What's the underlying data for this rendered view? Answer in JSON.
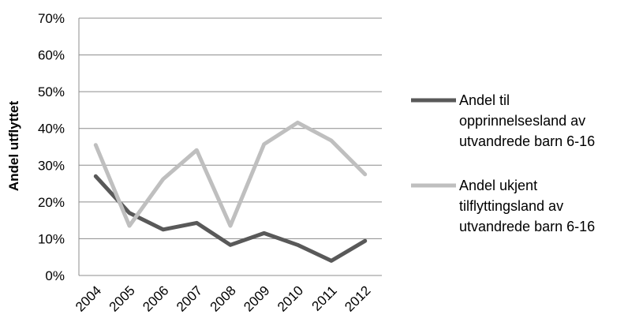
{
  "chart_data": {
    "type": "line",
    "title": "",
    "xlabel": "",
    "ylabel": "Andel utflyttet",
    "ylim": [
      0,
      0.7
    ],
    "ytick_values": [
      0,
      0.1,
      0.2,
      0.3,
      0.4,
      0.5,
      0.6,
      0.7
    ],
    "ytick_labels": [
      "0%",
      "10%",
      "20%",
      "30%",
      "40%",
      "50%",
      "60%",
      "70%"
    ],
    "categories": [
      "2004",
      "2005",
      "2006",
      "2007",
      "2008",
      "2009",
      "2010",
      "2011",
      "2012"
    ],
    "grid": "horizontal",
    "legend_position": "right",
    "series": [
      {
        "name_lines": [
          "Andel til",
          "opprinnelsesland av",
          "utvandrede barn 6-16"
        ],
        "color": "#595959",
        "values": [
          0.27,
          0.17,
          0.125,
          0.143,
          0.083,
          0.115,
          0.083,
          0.04,
          0.094
        ]
      },
      {
        "name_lines": [
          "Andel ukjent",
          "tilflyttingsland av",
          "utvandrede barn 6-16"
        ],
        "color": "#bfbfbf",
        "values": [
          0.355,
          0.135,
          0.262,
          0.341,
          0.135,
          0.357,
          0.416,
          0.367,
          0.275
        ]
      }
    ]
  }
}
